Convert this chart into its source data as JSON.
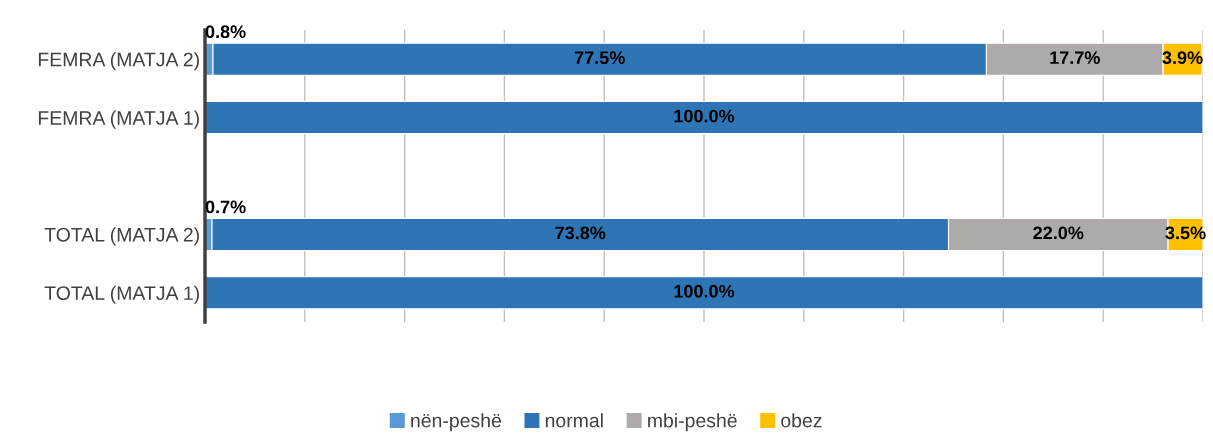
{
  "chart_data": {
    "type": "bar",
    "orientation": "horizontal",
    "stacked": true,
    "categories": [
      "FEMRA (MATJA 2)",
      "FEMRA (MATJA 1)",
      null,
      "TOTAL (MATJA 2)",
      "TOTAL (MATJA 1)"
    ],
    "series": [
      {
        "name": "nën-peshë",
        "color": "#5b9bd5",
        "values": [
          0.8,
          null,
          null,
          0.7,
          null
        ],
        "value_labels": [
          "0.8%",
          null,
          null,
          "0.7%",
          null
        ]
      },
      {
        "name": "normal",
        "color": "#2e75b6",
        "values": [
          77.5,
          100.0,
          null,
          73.8,
          100.0
        ],
        "value_labels": [
          "77.5%",
          "100.0%",
          null,
          "73.8%",
          "100.0%"
        ]
      },
      {
        "name": "mbi-peshë",
        "color": "#aeaaaa",
        "values": [
          17.7,
          null,
          null,
          22.0,
          null
        ],
        "value_labels": [
          "17.7%",
          null,
          null,
          "22.0%",
          null
        ]
      },
      {
        "name": "obez",
        "color": "#ffc000",
        "values": [
          3.9,
          null,
          null,
          3.5,
          null
        ],
        "value_labels": [
          "3.9%",
          null,
          null,
          "3.5%",
          null
        ]
      }
    ],
    "xlim": [
      0,
      100
    ],
    "xticks": [
      {
        "value": 0,
        "label": null
      },
      {
        "value": 10,
        "label": null
      },
      {
        "value": 20,
        "label": null
      },
      {
        "value": 30,
        "label": null
      },
      {
        "value": 40,
        "label": null
      },
      {
        "value": 50,
        "label": null
      },
      {
        "value": 60,
        "label": null
      },
      {
        "value": 70,
        "label": null
      },
      {
        "value": 80,
        "label": null
      },
      {
        "value": 90,
        "label": null
      },
      {
        "value": 100,
        "label": null
      }
    ],
    "tick_labels": "y",
    "grid": "x",
    "legend": "bottom"
  }
}
